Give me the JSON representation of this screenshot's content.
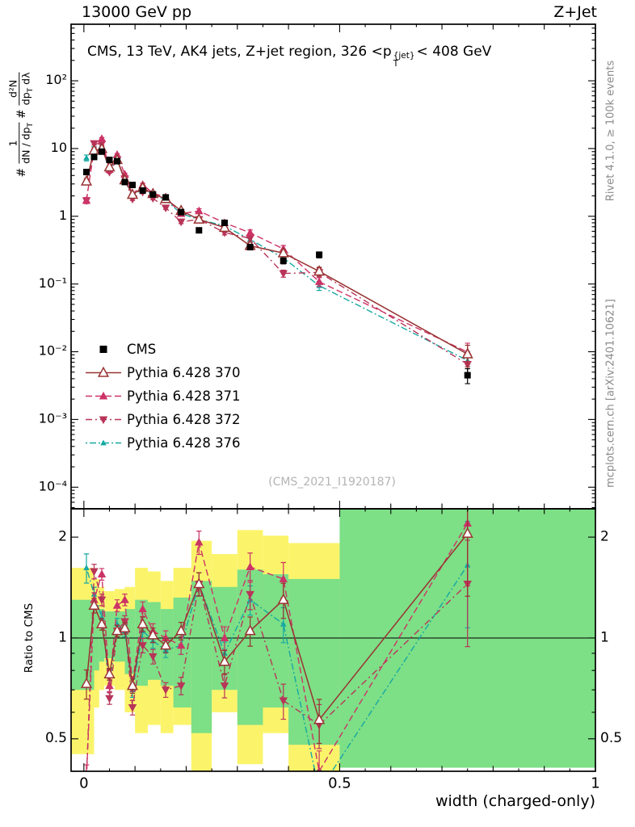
{
  "header": {
    "left": "13000 GeV pp",
    "right": "Z+Jet"
  },
  "side_notes": {
    "top": "Rivet 4.1.0, ≥ 100k events",
    "bottom": "mcplots.cern.ch [arXiv:2401.10621]"
  },
  "panel_title": {
    "part1": "CMS, 13 TeV, AK4 jets, Z+jet region, 326 <p",
    "sup": "{jet}",
    "sub": "T",
    "part2": "< 408 GeV"
  },
  "watermark": "(CMS_2021_I1920187)",
  "ylabel_top": {
    "hash1": "#",
    "f1num": "1",
    "f1den": "dN / dp",
    "f1den_sub": "T",
    "hash2": "#",
    "f2num": "d²N",
    "f2den": "dp",
    "f2den_sub": "T",
    "f2den_tail": " dλ"
  },
  "ratio_ylabel": "Ratio to CMS",
  "xlabel": "width (charged-only)",
  "legend": {
    "items": [
      {
        "label": "CMS"
      },
      {
        "label": "Pythia 6.428 370"
      },
      {
        "label": "Pythia 6.428 371"
      },
      {
        "label": "Pythia 6.428 372"
      },
      {
        "label": "Pythia 6.428 376"
      }
    ]
  },
  "chart_data": {
    "type": "line",
    "title": "CMS, 13 TeV, AK4 jets, Z+jet region, 326 < pT{jet} < 408 GeV",
    "xlabel": "width (charged-only)",
    "xlim": [
      -0.025,
      1.0
    ],
    "xticks": [
      0,
      0.5,
      1
    ],
    "x": [
      0.005,
      0.02,
      0.035,
      0.05,
      0.065,
      0.08,
      0.095,
      0.115,
      0.135,
      0.16,
      0.19,
      0.225,
      0.275,
      0.325,
      0.39,
      0.46,
      0.75
    ],
    "top_panel": {
      "yscale": "log",
      "ylim": [
        4.8e-05,
        684
      ],
      "ylabel_exponents": [
        -4,
        -3,
        -2,
        -1,
        0,
        1,
        2
      ]
    },
    "ratio_panel": {
      "yscale": "log",
      "ylim": [
        0.4,
        2.43
      ],
      "yticks": [
        0.5,
        1,
        2
      ],
      "ref_line": 1
    },
    "cms": {
      "label": "CMS",
      "color": "#000000",
      "marker": "square",
      "y": [
        4.5,
        7.5,
        9.0,
        6.8,
        6.5,
        3.2,
        2.9,
        2.4,
        2.1,
        1.9,
        1.15,
        0.62,
        0.8,
        0.35,
        0.22,
        0.27,
        0.0045
      ],
      "relerr": [
        0.08,
        0.04,
        0.04,
        0.04,
        0.04,
        0.04,
        0.04,
        0.04,
        0.04,
        0.05,
        0.05,
        0.06,
        0.06,
        0.08,
        0.1,
        0.1,
        0.25
      ]
    },
    "mc_relerr": [
      0.1,
      0.05,
      0.04,
      0.04,
      0.04,
      0.04,
      0.05,
      0.05,
      0.05,
      0.05,
      0.06,
      0.08,
      0.08,
      0.1,
      0.12,
      0.15,
      0.35
    ],
    "series": [
      {
        "label": "Pythia 6.428 370",
        "color": "#993333",
        "dash": [],
        "marker": "triangle-open",
        "size": 10,
        "ratio": [
          0.73,
          1.25,
          1.1,
          0.78,
          1.05,
          1.07,
          0.72,
          1.1,
          1.02,
          0.95,
          1.05,
          1.45,
          0.85,
          1.05,
          1.3,
          0.57,
          2.05
        ]
      },
      {
        "label": "Pythia 6.428 371",
        "color": "#cc3366",
        "dash": [
          8,
          4
        ],
        "marker": "triangle-up",
        "size": 9,
        "ratio": [
          0.38,
          1.3,
          1.55,
          0.72,
          1.25,
          1.3,
          0.73,
          1.22,
          1.05,
          1.0,
          0.95,
          1.93,
          1.0,
          1.63,
          1.5,
          0.4,
          2.2
        ]
      },
      {
        "label": "Pythia 6.428 372",
        "color": "#b83458",
        "dash": [
          8,
          4,
          2,
          4
        ],
        "marker": "triangle-down",
        "size": 9,
        "ratio": [
          0.38,
          1.58,
          1.3,
          0.66,
          1.05,
          1.12,
          0.62,
          0.95,
          0.88,
          0.7,
          0.72,
          1.45,
          0.72,
          1.35,
          0.65,
          0.55,
          1.45
        ]
      },
      {
        "label": "Pythia 6.428 376",
        "color": "#17a8a2",
        "dash": [
          2,
          3,
          8,
          3
        ],
        "marker": "triangle-small",
        "size": 6.5,
        "ratio": [
          1.62,
          1.35,
          1.15,
          0.72,
          1.1,
          1.05,
          0.7,
          1.05,
          0.98,
          0.92,
          0.95,
          1.45,
          0.9,
          1.3,
          1.1,
          0.35,
          1.65
        ]
      }
    ],
    "bands": {
      "yellow_color": "#fbf46b",
      "green_color": "#7ddf86",
      "yellow": [
        [
          -0.025,
          0.02,
          0.45,
          1.62
        ],
        [
          0.02,
          0.03,
          0.62,
          1.5
        ],
        [
          0.03,
          0.04,
          0.7,
          1.42
        ],
        [
          0.04,
          0.06,
          0.72,
          1.38
        ],
        [
          0.06,
          0.08,
          0.7,
          1.4
        ],
        [
          0.08,
          0.1,
          0.6,
          1.42
        ],
        [
          0.1,
          0.125,
          0.52,
          1.62
        ],
        [
          0.125,
          0.15,
          0.55,
          1.58
        ],
        [
          0.15,
          0.175,
          0.52,
          1.48
        ],
        [
          0.175,
          0.21,
          0.55,
          1.62
        ],
        [
          0.21,
          0.25,
          0.35,
          1.95
        ],
        [
          0.25,
          0.3,
          0.6,
          1.78
        ],
        [
          0.3,
          0.35,
          0.42,
          2.1
        ],
        [
          0.35,
          0.4,
          0.52,
          2.02
        ],
        [
          0.4,
          0.5,
          0.38,
          1.92
        ]
      ],
      "green": [
        [
          -0.025,
          0.02,
          0.7,
          1.3
        ],
        [
          0.02,
          0.03,
          0.8,
          1.25
        ],
        [
          0.03,
          0.04,
          0.85,
          1.22
        ],
        [
          0.04,
          0.06,
          0.87,
          1.2
        ],
        [
          0.06,
          0.08,
          0.85,
          1.2
        ],
        [
          0.08,
          0.1,
          0.78,
          1.22
        ],
        [
          0.1,
          0.125,
          0.72,
          1.3
        ],
        [
          0.125,
          0.15,
          0.75,
          1.28
        ],
        [
          0.15,
          0.175,
          0.72,
          1.22
        ],
        [
          0.175,
          0.21,
          0.62,
          1.32
        ],
        [
          0.21,
          0.25,
          0.52,
          1.48
        ],
        [
          0.25,
          0.3,
          0.7,
          1.42
        ],
        [
          0.3,
          0.35,
          0.55,
          1.6
        ],
        [
          0.35,
          0.4,
          0.62,
          1.55
        ],
        [
          0.4,
          0.5,
          0.48,
          1.5
        ],
        [
          0.5,
          1.0,
          0.41,
          2.43
        ]
      ]
    }
  }
}
